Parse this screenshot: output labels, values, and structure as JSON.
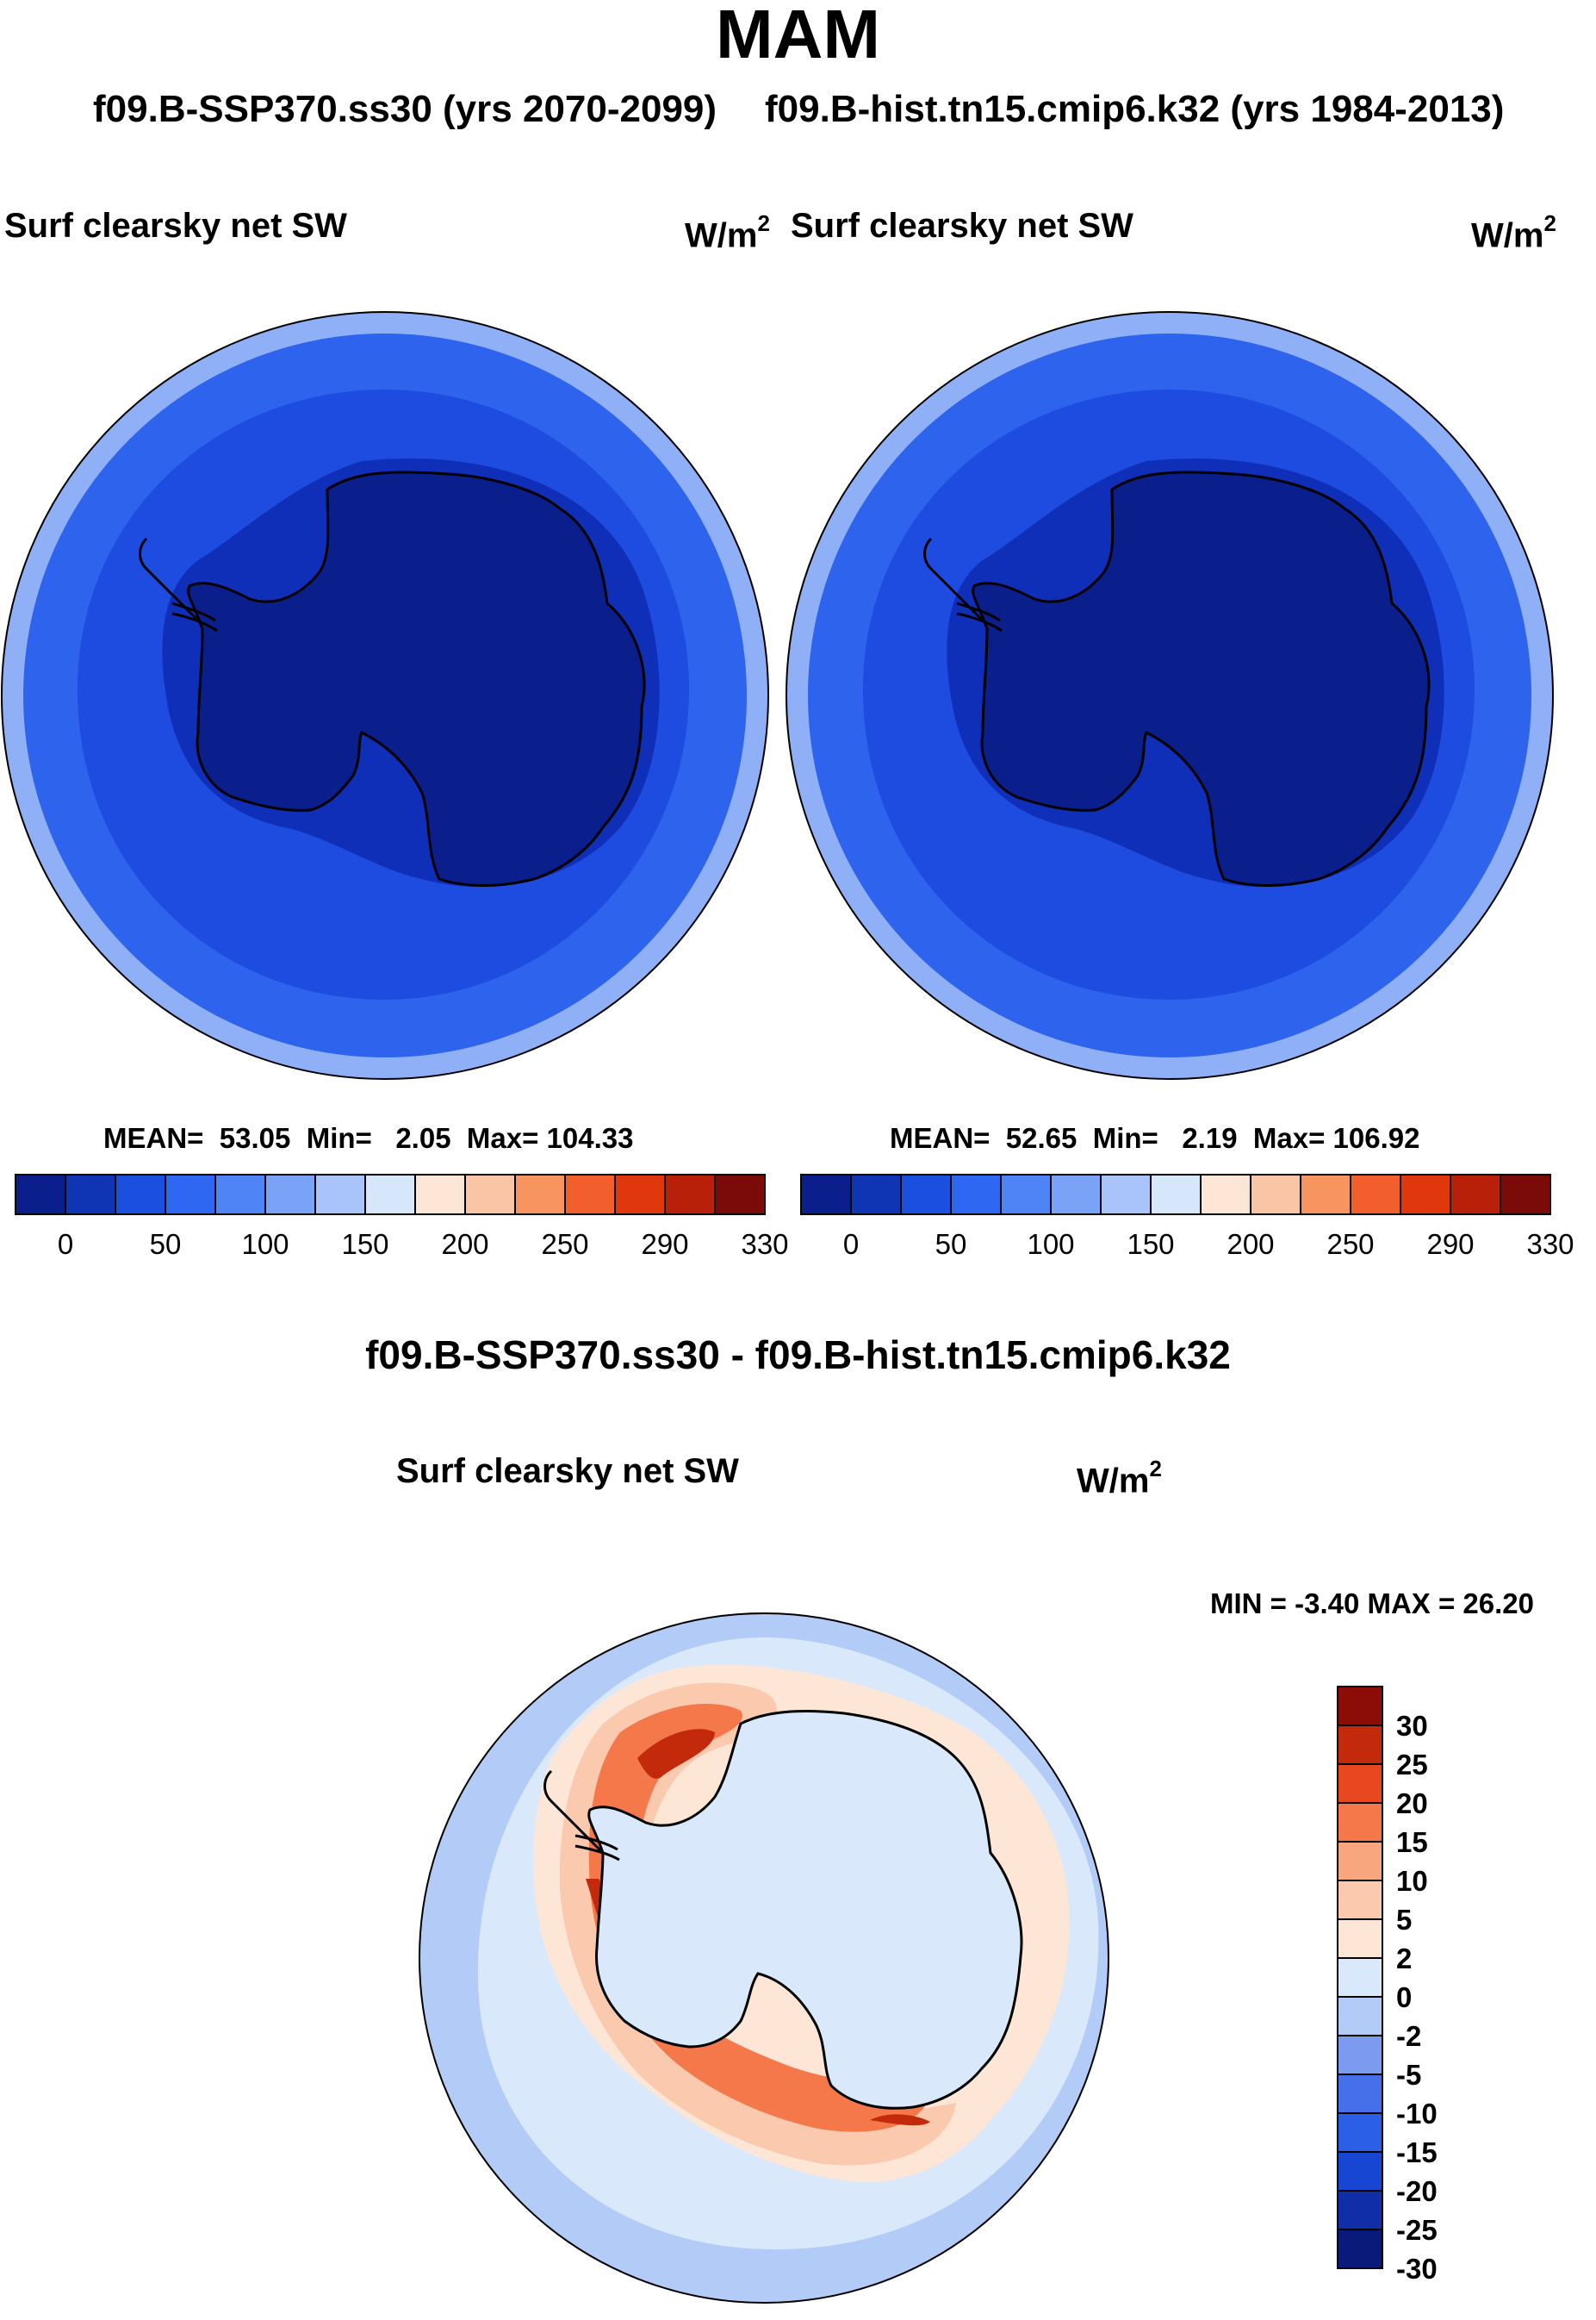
{
  "title": "MAM",
  "panel_a": {
    "case": "f09.B-SSP370.ss30 (yrs 2070-2099)",
    "variable": "Surf clearsky net SW",
    "units_base": "W/m",
    "units_exp": "2",
    "stats": {
      "mean_label": "MEAN=",
      "mean": "53.05",
      "min_label": "Min=",
      "min": "2.05",
      "max_label": "Max=",
      "max": "104.33"
    }
  },
  "panel_b": {
    "case": "f09.B-hist.tn15.cmip6.k32 (yrs 1984-2013)",
    "variable": "Surf clearsky net SW",
    "units_base": "W/m",
    "units_exp": "2",
    "stats": {
      "mean_label": "MEAN=",
      "mean": "52.65",
      "min_label": "Min=",
      "min": "2.19",
      "max_label": "Max=",
      "max": "106.92"
    }
  },
  "panel_c": {
    "title": "f09.B-SSP370.ss30 - f09.B-hist.tn15.cmip6.k32",
    "variable": "Surf clearsky net SW",
    "units_base": "W/m",
    "units_exp": "2",
    "minmax": "MIN =  -3.40 MAX =  26.20"
  },
  "colorbar_abs": {
    "colors": [
      "#0a1f8c",
      "#0f35b5",
      "#1a4fe0",
      "#2e68f2",
      "#4f84f6",
      "#7aa3f8",
      "#a9c4fa",
      "#d6e6fb",
      "#fde6d5",
      "#fac4a6",
      "#f7945f",
      "#f25f2c",
      "#e0370d",
      "#b8200a",
      "#7a0b08"
    ],
    "labels": [
      "0",
      "50",
      "100",
      "150",
      "200",
      "250",
      "290",
      "330"
    ]
  },
  "colorbar_diff": {
    "colors": [
      "#0a1a7a",
      "#0f2ea8",
      "#1747d2",
      "#2a5fe6",
      "#466fea",
      "#7c9bf0",
      "#b3cbf7",
      "#d9e8fb",
      "#fde6d5",
      "#fac9ae",
      "#f8a67e",
      "#f4784a",
      "#e9471f",
      "#c22a0b",
      "#8c0c08"
    ],
    "labels": [
      "-30",
      "-25",
      "-20",
      "-15",
      "-10",
      "-5",
      "-2",
      "0",
      "2",
      "5",
      "10",
      "15",
      "20",
      "25",
      "30"
    ]
  },
  "map_fill": {
    "abs_rings": [
      "#8fb0f7",
      "#2e63ee",
      "#1e4be0",
      "#0f2fb8"
    ],
    "diff_ocean": "#b3cbf7",
    "diff_inner": "#d9e8fb",
    "land_line": "#000000"
  }
}
